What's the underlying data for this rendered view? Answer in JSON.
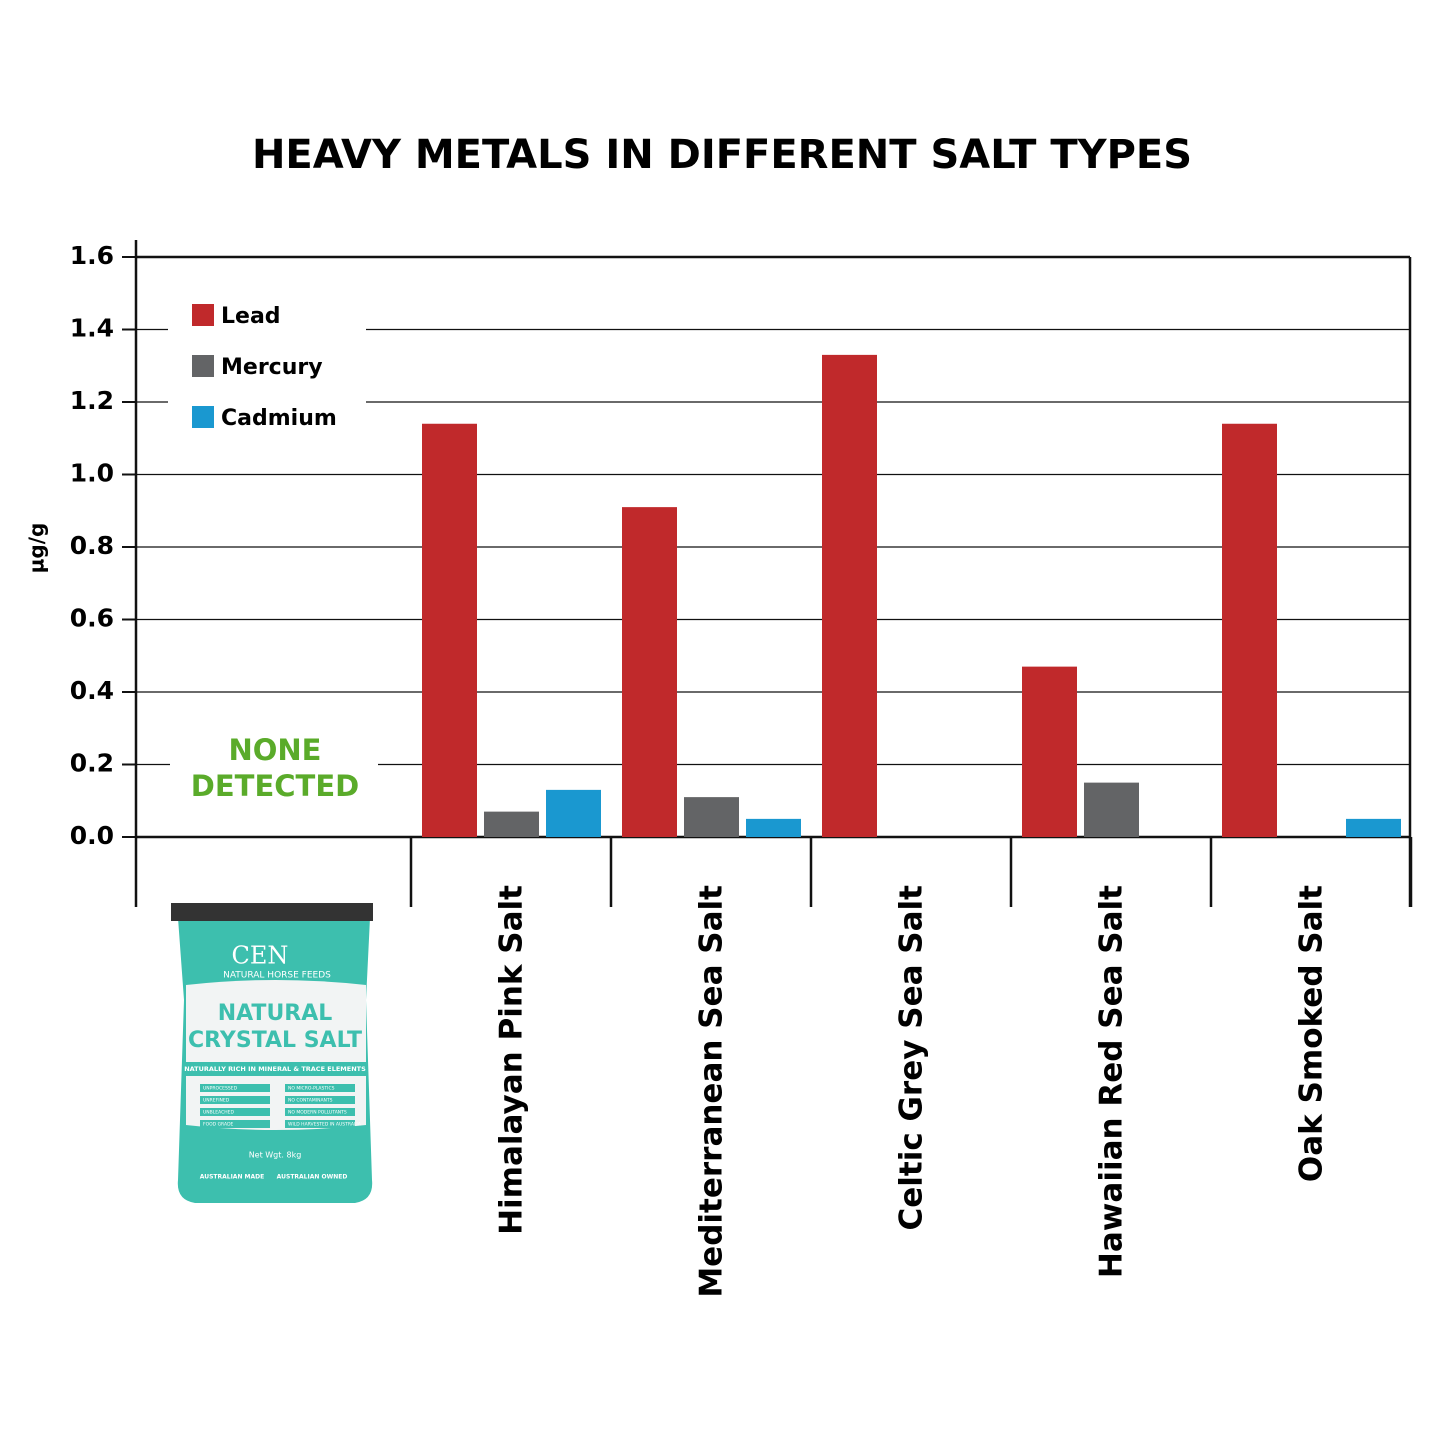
{
  "chart_data": {
    "type": "bar",
    "title": "HEAVY METALS IN DIFFERENT SALT TYPES",
    "y_label": "µg/g",
    "categories": [
      null,
      "Himalayan Pink Salt",
      "Mediterranean Sea Salt",
      "Celtic Grey Sea Salt",
      "Hawaiian Red Sea Salt",
      "Oak Smoked Salt"
    ],
    "series": [
      {
        "name": "Lead",
        "color": "#c0292b",
        "values": [
          0,
          1.14,
          0.91,
          1.33,
          0.47,
          1.14
        ]
      },
      {
        "name": "Mercury",
        "color": "#636466",
        "values": [
          0,
          0.07,
          0.11,
          0,
          0.15,
          0
        ]
      },
      {
        "name": "Cadmium",
        "color": "#1a98d0",
        "values": [
          0,
          0.13,
          0.05,
          0,
          0,
          0.05
        ]
      }
    ],
    "ylim": [
      0,
      1.6
    ],
    "yticks": [
      {
        "value": 0,
        "label": "0.0"
      },
      0.2,
      0.4,
      0.6,
      0.8,
      {
        "value": 1,
        "label": "1.0"
      },
      1.2,
      1.4,
      1.6
    ],
    "grid": true,
    "legend": "top-left",
    "annotation": "NONE DETECTED",
    "product": {
      "brand": "CEN",
      "tagline": "NATURAL HORSE FEEDS",
      "name_line1": "NATURAL",
      "name_line2": "CRYSTAL SALT",
      "claim": "NATURALLY RICH IN MINERAL & TRACE ELEMENTS",
      "features": [
        "UNPROCESSED",
        "NO MICRO-PLASTICS",
        "UNREFINED",
        "NO CONTAMINANTS",
        "UNBLEACHED",
        "NO MODERN POLLUTANTS",
        "FOOD GRADE",
        "WILD HARVESTED IN AUSTRALIA"
      ],
      "weight": "Net Wgt. 8kg",
      "made": "AUSTRALIAN MADE",
      "owned": "AUSTRALIAN OWNED"
    }
  }
}
